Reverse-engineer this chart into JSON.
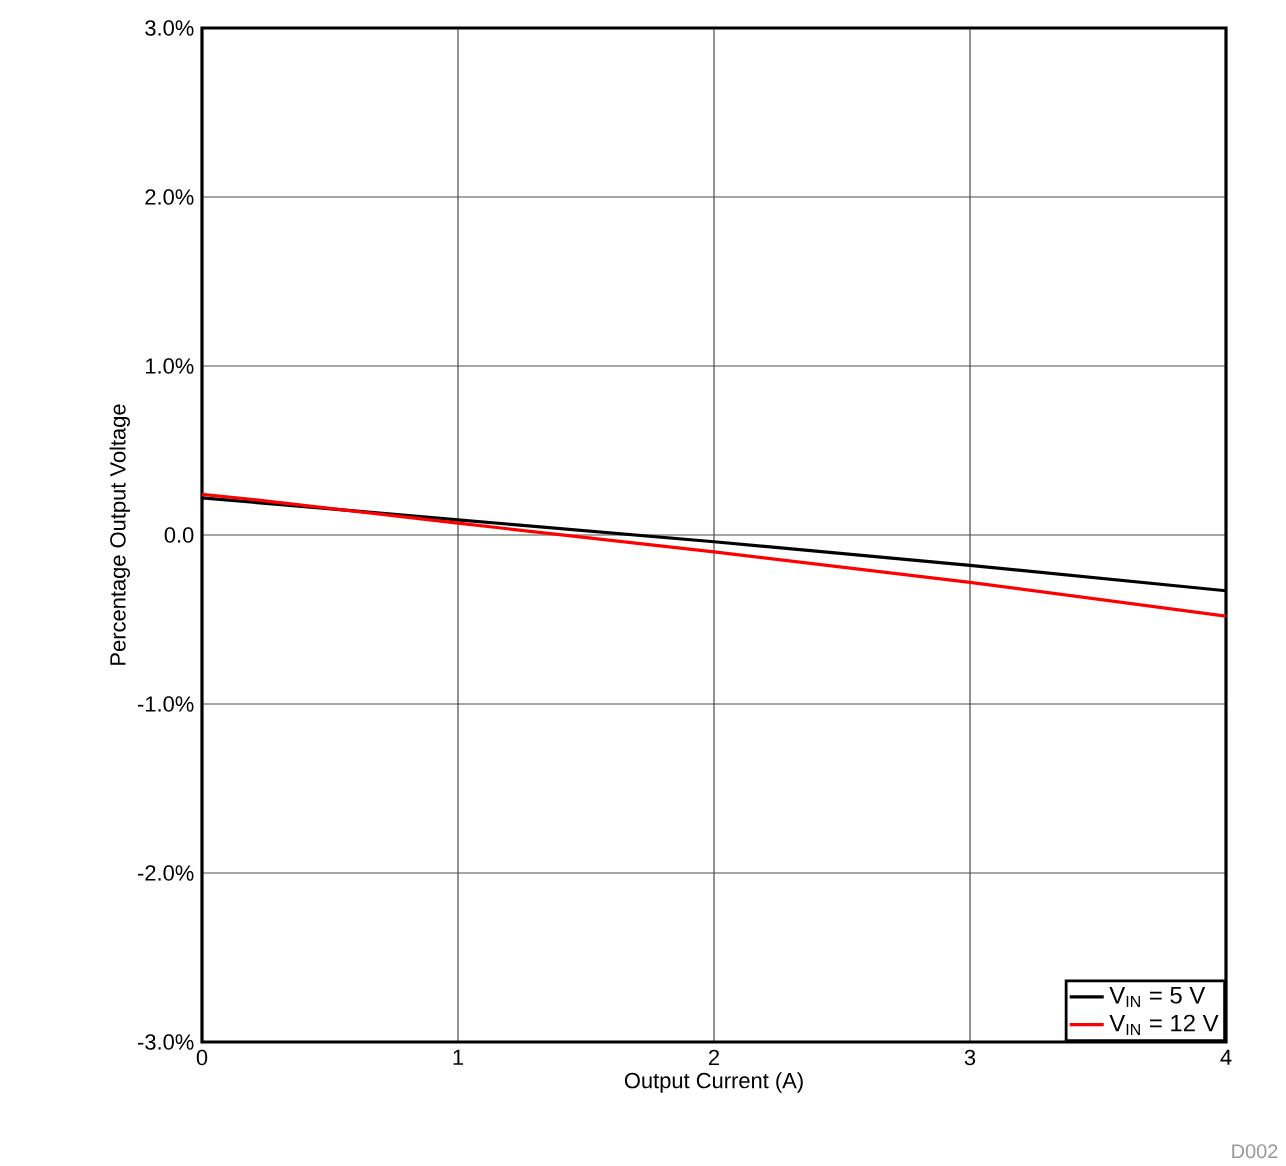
{
  "chart_data": {
    "type": "line",
    "xlabel": "Output Current (A)",
    "ylabel": "Percentage Output Voltage",
    "xlim": [
      0,
      4
    ],
    "xticks": [
      0,
      1,
      2,
      3,
      4
    ],
    "ylim": [
      -3,
      3
    ],
    "yticks": [
      {
        "value": -3,
        "label": "-3.0%"
      },
      {
        "value": -2,
        "label": "-2.0%"
      },
      {
        "value": -1,
        "label": "-1.0%"
      },
      {
        "value": 0,
        "label": "0.0"
      },
      {
        "value": 1,
        "label": "1.0%"
      },
      {
        "value": 2,
        "label": "2.0%"
      },
      {
        "value": 3,
        "label": "3.0%"
      }
    ],
    "grid": true,
    "legend": "bottom right",
    "marker": "none",
    "line_style": "solid",
    "annotations": [
      "D002"
    ],
    "series": [
      {
        "name": "V$_{IN}$ = 5 V",
        "color": "#000000",
        "x": [
          0,
          0.2,
          1,
          2,
          3,
          4
        ],
        "values": [
          0.22,
          null,
          0.09,
          -0.04,
          -0.18,
          -0.33
        ]
      },
      {
        "name": "V$_{IN}$ = 12 V",
        "color": "#ff0000",
        "x": [
          0,
          0.2,
          1,
          2,
          3,
          4
        ],
        "values": [
          0.24,
          0.21,
          0.07,
          -0.1,
          -0.28,
          -0.48
        ]
      }
    ]
  }
}
